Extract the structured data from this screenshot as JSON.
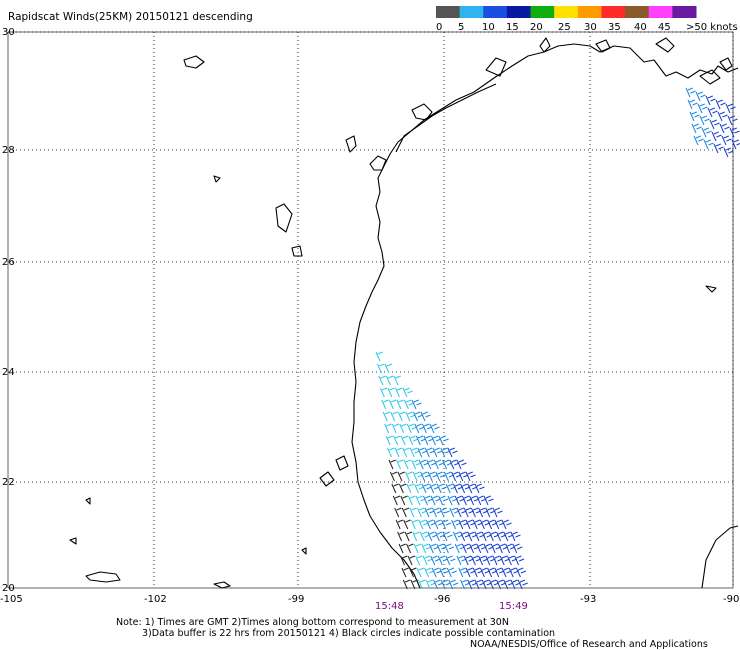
{
  "title": "Rapidscat Winds(25KM) 20150121 descending",
  "legend": {
    "labels": [
      "0",
      "5",
      "10",
      "15",
      "20",
      "25",
      "30",
      "35",
      "40",
      "45",
      ">50 knots"
    ],
    "colors": [
      "#555555",
      "#2fb4f0",
      "#1a4fe0",
      "#0a1aa0",
      "#0fae0f",
      "#ffe000",
      "#ff9a00",
      "#ff2a2a",
      "#8a5a2a",
      "#ff40ff",
      "#6a1aa0"
    ]
  },
  "axes": {
    "lat_labels": [
      "30",
      "28",
      "26",
      "24",
      "22",
      "20"
    ],
    "lon_labels": [
      "-105",
      "-102",
      "-99",
      "-96",
      "-93",
      "-90"
    ]
  },
  "pass_times": [
    "15:48",
    "15:49"
  ],
  "notes": [
    "Note: 1) Times are GMT 2)Times along bottom correspond to measurement at 30N",
    "3)Data buffer is 22 hrs from 20150121 4) Black circles indicate possible contamination",
    "NOAA/NESDIS/Office of Research and Applications"
  ],
  "wind_colors": {
    "light": "#2ec8e6",
    "mid": "#1a86e0",
    "strong": "#1a3fd0",
    "calm": "#222222"
  }
}
